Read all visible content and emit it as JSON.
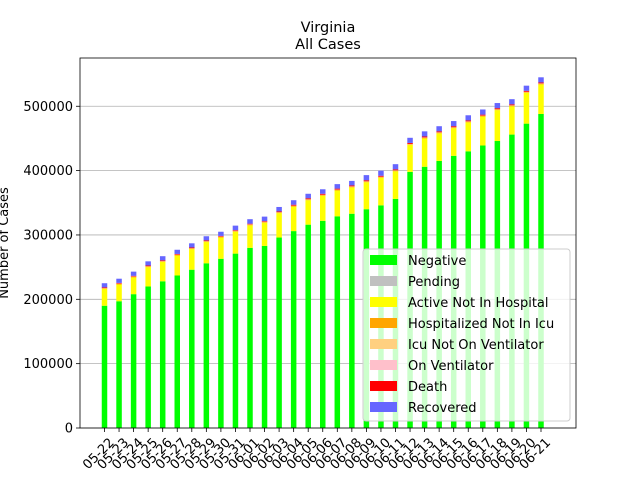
{
  "chart_data": {
    "type": "bar",
    "title": "Virginia",
    "subtitle": "All Cases",
    "xlabel": "",
    "ylabel": "Number of Cases",
    "ylim": [
      0,
      575000
    ],
    "yticks": [
      0,
      100000,
      200000,
      300000,
      400000,
      500000
    ],
    "grid": "horizontal",
    "legend_position": "lower-right",
    "categories": [
      "05-22",
      "05-23",
      "05-24",
      "05-25",
      "05-26",
      "05-27",
      "05-28",
      "05-29",
      "05-30",
      "05-31",
      "06-01",
      "06-02",
      "06-03",
      "06-04",
      "06-05",
      "06-06",
      "06-07",
      "06-08",
      "06-09",
      "06-10",
      "06-11",
      "06-12",
      "06-13",
      "06-14",
      "06-15",
      "06-16",
      "06-17",
      "06-18",
      "06-19",
      "06-20",
      "06-21"
    ],
    "series": [
      {
        "name": "Negative",
        "color": "#00ff00",
        "values": [
          190000,
          197000,
          208000,
          220000,
          228000,
          237000,
          246000,
          256000,
          263000,
          271000,
          280000,
          283000,
          296000,
          306000,
          316000,
          322000,
          329000,
          333000,
          340000,
          346000,
          356000,
          398000,
          406000,
          415000,
          423000,
          430000,
          439000,
          446000,
          456000,
          473000,
          488000
        ]
      },
      {
        "name": "Pending",
        "color": "#c0c0c0",
        "values": [
          0,
          0,
          0,
          0,
          0,
          0,
          0,
          0,
          0,
          0,
          0,
          0,
          0,
          0,
          0,
          0,
          0,
          0,
          0,
          0,
          0,
          0,
          0,
          0,
          0,
          0,
          0,
          0,
          0,
          0,
          0
        ]
      },
      {
        "name": "Active Not In Hospital",
        "color": "#ffff00",
        "values": [
          26000,
          26000,
          26000,
          30000,
          30000,
          31000,
          32000,
          33000,
          33000,
          34000,
          35000,
          36000,
          38000,
          38000,
          38000,
          39000,
          40000,
          41000,
          42000,
          43000,
          43000,
          42000,
          44000,
          43000,
          43000,
          45000,
          45000,
          48000,
          44000,
          48000,
          46000
        ]
      },
      {
        "name": "Hospitalized Not In Icu",
        "color": "#ffa500",
        "values": [
          1000,
          1000,
          1000,
          1000,
          1000,
          1000,
          1000,
          1000,
          1000,
          1000,
          1000,
          1000,
          1000,
          1000,
          1000,
          1000,
          1000,
          1000,
          1000,
          1000,
          1000,
          1000,
          1000,
          1000,
          1000,
          1000,
          1000,
          1000,
          1000,
          1000,
          1000
        ]
      },
      {
        "name": "Icu Not On Ventilator",
        "color": "#ffd080",
        "values": [
          300,
          300,
          300,
          300,
          300,
          300,
          300,
          300,
          300,
          300,
          300,
          300,
          300,
          300,
          300,
          300,
          300,
          300,
          300,
          300,
          300,
          300,
          300,
          300,
          300,
          300,
          300,
          300,
          300,
          300,
          300
        ]
      },
      {
        "name": "On Ventilator",
        "color": "#ffc0cb",
        "values": [
          200,
          200,
          200,
          200,
          200,
          200,
          200,
          200,
          200,
          200,
          200,
          200,
          200,
          200,
          200,
          200,
          200,
          200,
          200,
          200,
          200,
          200,
          200,
          200,
          200,
          200,
          200,
          200,
          200,
          200,
          200
        ]
      },
      {
        "name": "Death",
        "color": "#ff0000",
        "values": [
          1000,
          1000,
          1000,
          1000,
          1000,
          1000,
          1000,
          1000,
          1000,
          1000,
          1000,
          1000,
          1000,
          1500,
          1500,
          1500,
          1500,
          1500,
          1500,
          1500,
          1500,
          1500,
          1500,
          1500,
          1500,
          1500,
          1500,
          1500,
          1500,
          1500,
          1500
        ]
      },
      {
        "name": "Recovered",
        "color": "#6666ff",
        "values": [
          6500,
          6500,
          6500,
          6500,
          6500,
          6500,
          6500,
          6500,
          6500,
          7000,
          7000,
          7000,
          7000,
          7000,
          7000,
          7000,
          7000,
          7000,
          8000,
          8000,
          8000,
          8000,
          8000,
          8000,
          8000,
          8000,
          8000,
          8000,
          8000,
          8000,
          8000
        ]
      }
    ]
  }
}
